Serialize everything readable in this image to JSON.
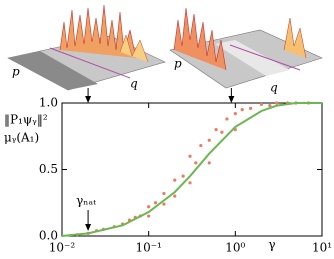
{
  "chart_data": {
    "type": "scatter",
    "ylabel_lines": [
      "‖P₁ψᵧ‖²",
      "μᵧ(A₁)"
    ],
    "xlabel": "γ",
    "xscale": "log",
    "xlim": [
      0.01,
      10
    ],
    "ylim": [
      0,
      1
    ],
    "xticks": [
      {
        "value": 0.01,
        "label": "10⁻²"
      },
      {
        "value": 0.1,
        "label": "10⁻¹"
      },
      {
        "value": 1,
        "label": "10⁰"
      },
      {
        "value": 10,
        "label": "10¹"
      }
    ],
    "yticks": [
      {
        "value": 0,
        "label": "0.0"
      },
      {
        "value": 0.5,
        "label": "0.5"
      },
      {
        "value": 1,
        "label": "1.0"
      }
    ],
    "series": [
      {
        "mode": "markers",
        "color": "#ee7a62",
        "x": [
          0.015,
          0.02,
          0.025,
          0.03,
          0.04,
          0.05,
          0.06,
          0.07,
          0.08,
          0.1,
          0.1,
          0.12,
          0.15,
          0.15,
          0.2,
          0.2,
          0.25,
          0.3,
          0.3,
          0.35,
          0.4,
          0.5,
          0.5,
          0.6,
          0.7,
          0.8,
          1,
          1,
          1.2,
          1.5,
          2,
          2.5,
          3,
          4,
          5,
          7
        ],
        "values": [
          0.01,
          0.02,
          0.04,
          0.05,
          0.07,
          0.09,
          0.12,
          0.14,
          0.15,
          0.22,
          0.15,
          0.25,
          0.32,
          0.24,
          0.42,
          0.3,
          0.45,
          0.6,
          0.4,
          0.55,
          0.68,
          0.72,
          0.55,
          0.8,
          0.78,
          0.88,
          0.92,
          0.8,
          0.95,
          0.96,
          0.99,
          0.98,
          1,
          1,
          1,
          1
        ]
      },
      {
        "mode": "line",
        "color": "#6ab850",
        "x": [
          0.01,
          0.02,
          0.05,
          0.1,
          0.2,
          0.3,
          0.5,
          1,
          2,
          3,
          5,
          10
        ],
        "values": [
          0,
          0.02,
          0.08,
          0.18,
          0.33,
          0.45,
          0.62,
          0.82,
          0.94,
          0.98,
          1,
          1
        ]
      }
    ],
    "annotations": [
      {
        "text": "γₙₐₜ",
        "x": 0.02
      }
    ],
    "insets": [
      {
        "axis_labels": [
          "p",
          "q"
        ],
        "x": 0.02
      },
      {
        "axis_labels": [
          "p",
          "q"
        ],
        "x": 0.9
      }
    ]
  }
}
